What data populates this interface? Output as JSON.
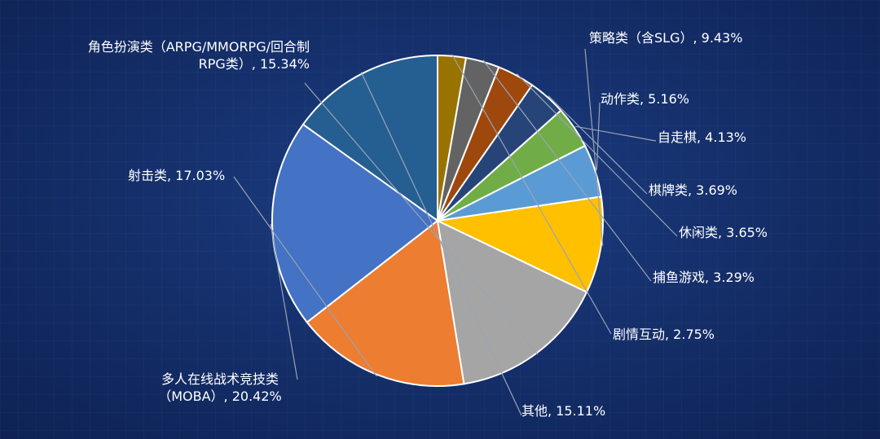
{
  "chart_data": {
    "type": "pie",
    "title": "",
    "slices": [
      {
        "label": "其他",
        "value": 15.11,
        "display": "其他, 15.11%",
        "color": "#255e91"
      },
      {
        "label": "多人在线战术竞技类（MOBA）",
        "value": 20.42,
        "display": "多人在线战术竞技类（MOBA）, 20.42%",
        "color": "#4472c4"
      },
      {
        "label": "射击类",
        "value": 17.03,
        "display": "射击类, 17.03%",
        "color": "#ed7d31"
      },
      {
        "label": "角色扮演类（ARPG/MMORPG/回合制RPG类）",
        "value": 15.34,
        "display": "角色扮演类（ARPG/MMORPG/回合制RPG类）, 15.34%",
        "color": "#a5a5a5"
      },
      {
        "label": "策略类（含SLG）",
        "value": 9.43,
        "display": "策略类（含SLG）, 9.43%",
        "color": "#ffc000"
      },
      {
        "label": "动作类",
        "value": 5.16,
        "display": "动作类, 5.16%",
        "color": "#5b9bd5"
      },
      {
        "label": "自走棋",
        "value": 4.13,
        "display": "自走棋, 4.13%",
        "color": "#70ad47"
      },
      {
        "label": "棋牌类",
        "value": 3.69,
        "display": "棋牌类, 3.69%",
        "color": "#264478"
      },
      {
        "label": "休闲类",
        "value": 3.65,
        "display": "休闲类, 3.65%",
        "color": "#9e480e"
      },
      {
        "label": "捕鱼游戏",
        "value": 3.29,
        "display": "捕鱼游戏, 3.29%",
        "color": "#636363"
      },
      {
        "label": "剧情互动",
        "value": 2.75,
        "display": "剧情互动, 2.75%",
        "color": "#997300"
      }
    ],
    "legend": "none"
  },
  "labels": {
    "moba_line1": "多人在线战术竞技类",
    "moba_line2": "（MOBA）, 20.42%",
    "rpg_line1": "角色扮演类（ARPG/MMORPG/回合制",
    "rpg_line2": "RPG类）, 15.34%"
  }
}
